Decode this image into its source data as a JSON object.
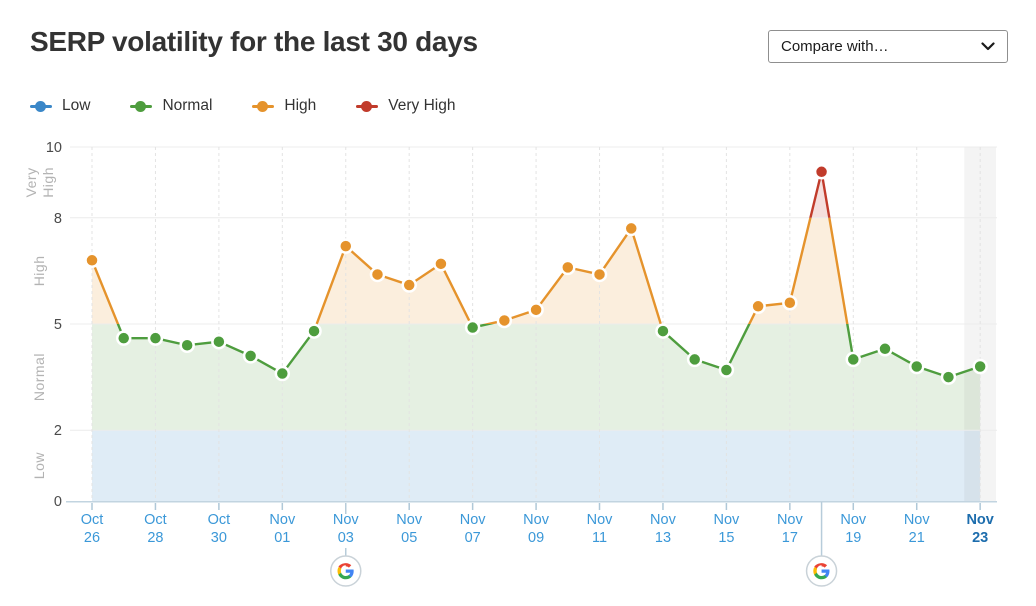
{
  "header": {
    "title": "SERP volatility for the last 30 days",
    "compare_dropdown": {
      "label": "Compare with…"
    }
  },
  "legend": {
    "items": [
      {
        "label": "Low",
        "color": "#3A87C8"
      },
      {
        "label": "Normal",
        "color": "#4E9D3E"
      },
      {
        "label": "High",
        "color": "#E5932C"
      },
      {
        "label": "Very High",
        "color": "#C13B2B"
      }
    ]
  },
  "chart_data": {
    "type": "area",
    "title": "SERP volatility for the last 30 days",
    "xlabel": "",
    "ylabel": "",
    "ylim": [
      0,
      10
    ],
    "yticks": [
      0,
      2,
      5,
      8,
      10
    ],
    "grid": true,
    "legend_position": "top-left",
    "x": [
      "Oct 26",
      "Oct 27",
      "Oct 28",
      "Oct 29",
      "Oct 30",
      "Oct 31",
      "Nov 01",
      "Nov 02",
      "Nov 03",
      "Nov 04",
      "Nov 05",
      "Nov 06",
      "Nov 07",
      "Nov 08",
      "Nov 09",
      "Nov 10",
      "Nov 11",
      "Nov 12",
      "Nov 13",
      "Nov 14",
      "Nov 15",
      "Nov 16",
      "Nov 17",
      "Nov 18",
      "Nov 19",
      "Nov 20",
      "Nov 21",
      "Nov 22",
      "Nov 23"
    ],
    "values": [
      6.8,
      4.6,
      4.6,
      4.4,
      4.5,
      4.1,
      3.6,
      4.8,
      7.2,
      6.4,
      6.1,
      6.7,
      4.9,
      5.1,
      5.4,
      6.6,
      6.4,
      7.7,
      4.8,
      4.0,
      3.7,
      5.5,
      5.6,
      9.3,
      4.0,
      4.3,
      3.8,
      3.5,
      3.8
    ],
    "labeled_ticks_every": 2,
    "zones": [
      {
        "label": "Low",
        "from": 0,
        "to": 2,
        "color": "#3A87C8",
        "fill": "rgba(58,135,200,0.16)"
      },
      {
        "label": "Normal",
        "from": 2,
        "to": 5,
        "color": "#4E9D3E",
        "fill": "rgba(78,157,62,0.15)"
      },
      {
        "label": "High",
        "from": 5,
        "to": 8,
        "color": "#E5932C",
        "fill": "rgba(229,147,44,0.16)"
      },
      {
        "label": "Very High",
        "from": 8,
        "to": 10,
        "color": "#C13B2B",
        "fill": "rgba(193,59,43,0.16)"
      }
    ],
    "current_day": "Nov 23",
    "google_updates": [
      "Nov 03",
      "Nov 18"
    ],
    "colors": {
      "x_label": "#3B98D8",
      "x_label_current": "#1D6DAD",
      "y_label": "#4A4A4A",
      "zone_label": "#B3B3B3",
      "axis_line": "#C2D4E0",
      "tick": "#AFC8D8",
      "h_grid": "#ECECEC",
      "v_grid": "#E3E3E3",
      "current_day_band": "rgba(110,110,110,0.08)",
      "annotation_line": "#B7CCDA",
      "icon_circle_border": "#C9D2D8"
    }
  }
}
